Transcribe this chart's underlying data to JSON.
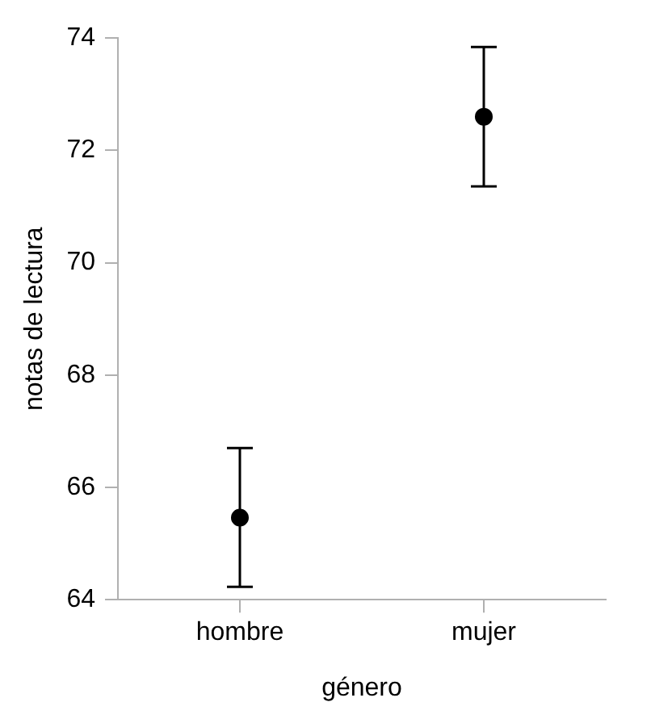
{
  "chart_data": {
    "type": "scatter",
    "xlabel": "género",
    "ylabel": "notas de lectura",
    "categories": [
      "hombre",
      "mujer"
    ],
    "series": [
      {
        "color": "#000000",
        "values": [
          65.46,
          72.6
        ],
        "errors": [
          [
            64.23,
            66.7
          ],
          [
            71.36,
            73.84
          ]
        ]
      }
    ],
    "ylim": [
      64,
      74
    ],
    "yticks": [
      64,
      66,
      68,
      70,
      72,
      74
    ],
    "grid": false,
    "legend": false,
    "marker": "circle"
  }
}
